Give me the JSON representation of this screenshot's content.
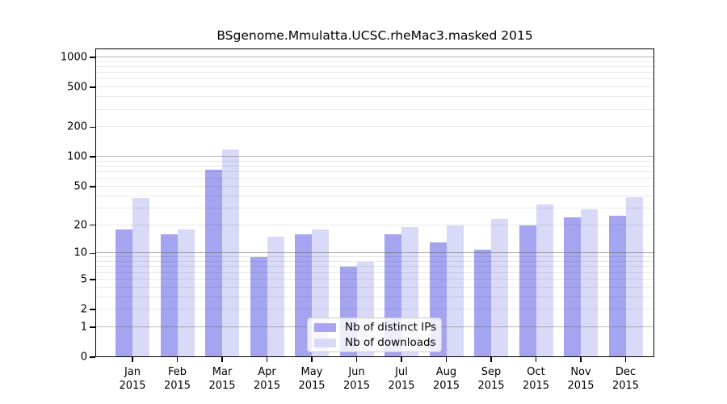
{
  "title": "BSgenome.Mmulatta.UCSC.rheMac3.masked 2015",
  "chart_data": {
    "type": "bar",
    "title": "BSgenome.Mmulatta.UCSC.rheMac3.masked 2015",
    "categories": [
      "Jan",
      "Feb",
      "Mar",
      "Apr",
      "May",
      "Jun",
      "Jul",
      "Aug",
      "Sep",
      "Oct",
      "Nov",
      "Dec"
    ],
    "category_year": "2015",
    "series": [
      {
        "name": "Nb of distinct IPs",
        "color": "#a4a4f0",
        "values": [
          18,
          16,
          74,
          9,
          16,
          7,
          16,
          13,
          11,
          20,
          24,
          25
        ]
      },
      {
        "name": "Nb of downloads",
        "color": "#d9d9f8",
        "values": [
          38,
          18,
          120,
          15,
          18,
          8,
          19,
          20,
          23,
          33,
          29,
          39
        ]
      }
    ],
    "xlabel": "",
    "ylabel": "",
    "y_scale": "log1p",
    "ylim": [
      0,
      1200
    ],
    "y_ticks": [
      0,
      1,
      2,
      5,
      10,
      20,
      50,
      100,
      200,
      500,
      1000
    ],
    "y_major_gridlines": [
      1,
      10,
      100,
      1000
    ],
    "y_minor_gridlines": [
      2,
      3,
      4,
      5,
      6,
      7,
      8,
      9,
      20,
      30,
      40,
      50,
      60,
      70,
      80,
      90,
      200,
      300,
      400,
      500,
      600,
      700,
      800,
      900
    ],
    "grid": true,
    "legend_position": "bottom-center"
  },
  "legend": {
    "items": [
      {
        "label": "Nb of distinct IPs",
        "swatch_color": "#a4a4f0"
      },
      {
        "label": "Nb of downloads",
        "swatch_color": "#d9d9f8"
      }
    ]
  }
}
